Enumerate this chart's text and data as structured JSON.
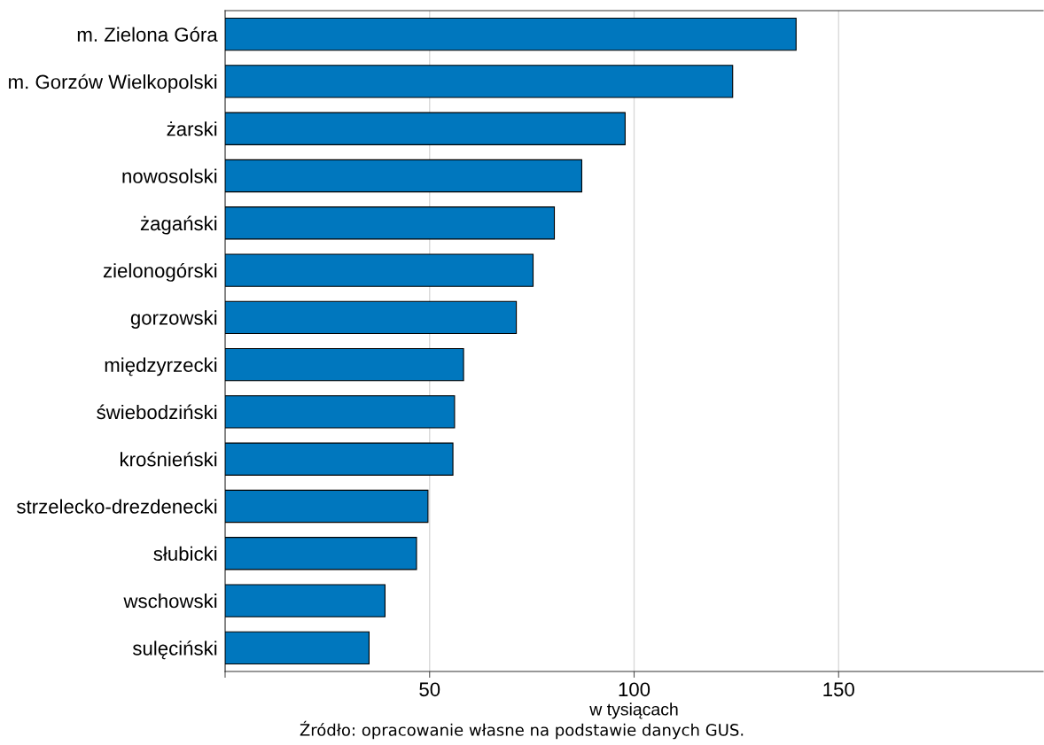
{
  "chart_data": {
    "type": "bar",
    "orientation": "horizontal",
    "categories": [
      "m. Zielona Góra",
      "m. Gorzów Wielkopolski",
      "żarski",
      "nowosolski",
      "żagański",
      "zielonogórski",
      "gorzowski",
      "międzyrzecki",
      "świebodziński",
      "krośnieński",
      "strzelecko-drezdenecki",
      "słubicki",
      "wschowski",
      "sulęciński"
    ],
    "values": [
      139.6,
      124.1,
      97.8,
      87.2,
      80.5,
      75.3,
      71.2,
      58.3,
      56.1,
      55.7,
      49.6,
      46.8,
      39.1,
      35.2
    ],
    "color": "#0077be",
    "xlim": [
      0,
      200
    ],
    "xticks": [
      {
        "value": 0,
        "label": null
      },
      50,
      100,
      150
    ],
    "xlabel": "w tysiącach",
    "grid": "x",
    "annotations": [
      "Źródło: opracowanie własne na podstawie danych GUS."
    ]
  }
}
